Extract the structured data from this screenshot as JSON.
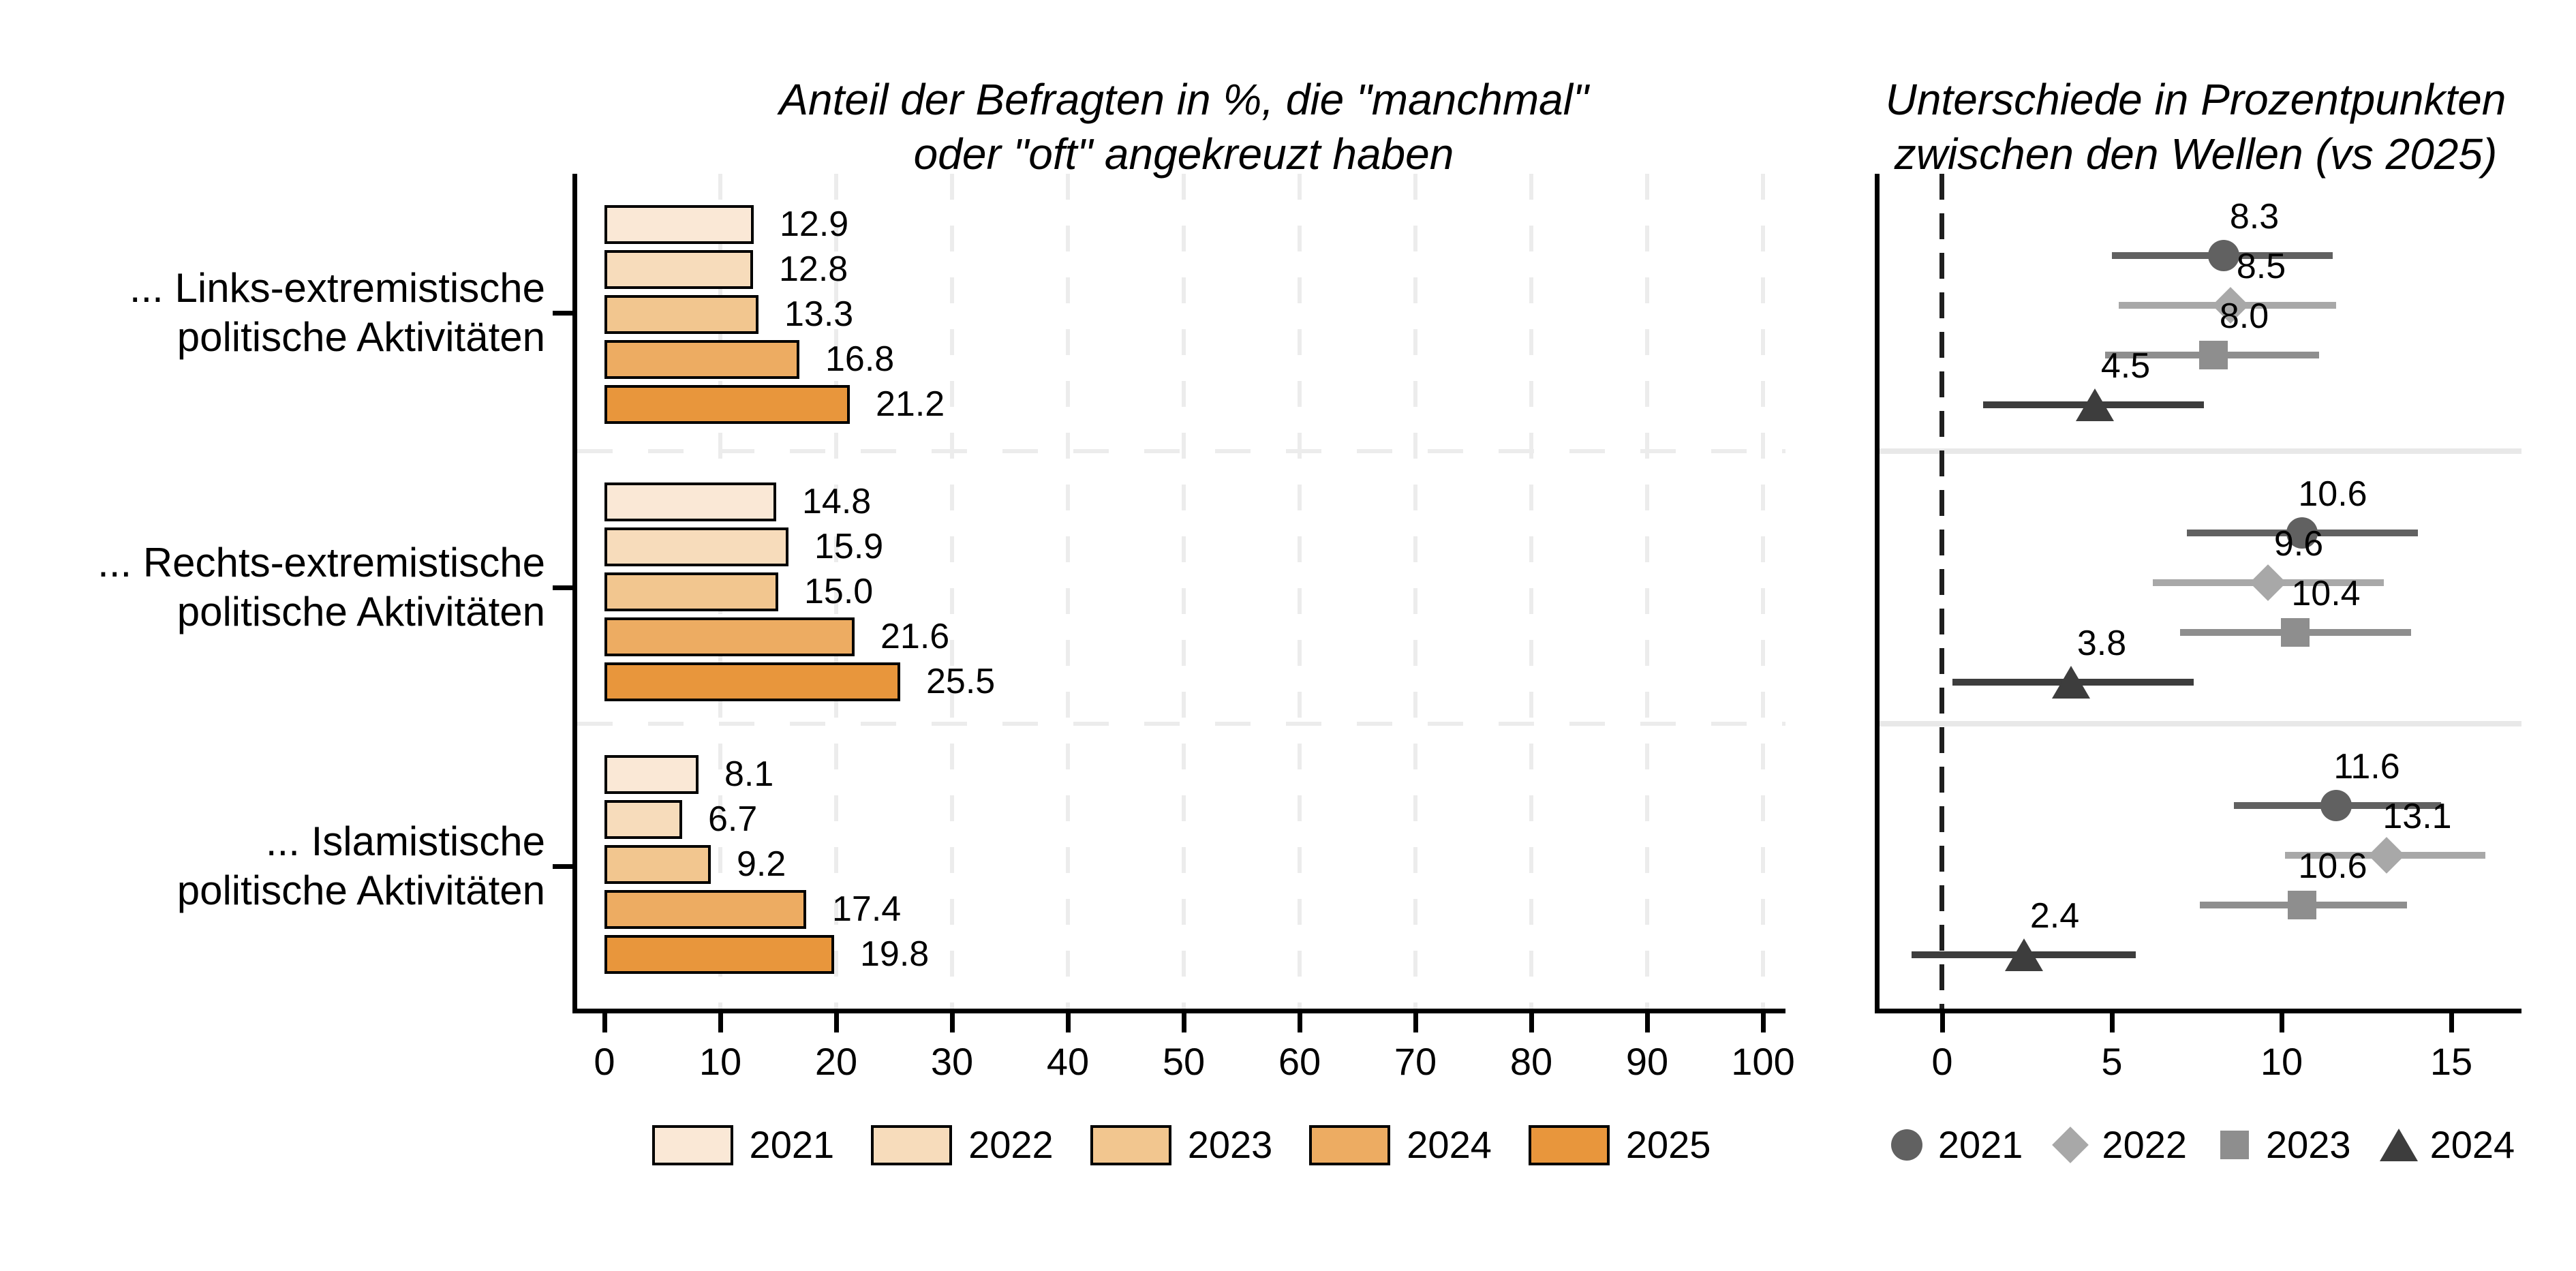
{
  "left_panel": {
    "title_line1": "Anteil der Befragten in %, die \"manchmal\"",
    "title_line2": "oder \"oft\" angekreuzt haben",
    "groups": [
      {
        "label_line1": "... Links-extremistische",
        "label_line2": "politische Aktivitäten"
      },
      {
        "label_line1": "... Rechts-extremistische",
        "label_line2": "politische Aktivitäten"
      },
      {
        "label_line1": "... Islamistische",
        "label_line2": "politische Aktivitäten"
      }
    ]
  },
  "right_panel": {
    "title_line1": "Unterschiede in Prozentpunkten",
    "title_line2": "zwischen den Wellen (vs 2025)"
  },
  "colors": {
    "axis": "#000000",
    "gridline": "#ECECEC",
    "separator": "#E8E8E8",
    "zero_line": "#1F1F1F",
    "text": "#000000"
  },
  "chart_data": [
    {
      "type": "bar",
      "orientation": "horizontal",
      "title": "Anteil der Befragten in %, die \"manchmal\" oder \"oft\" angekreuzt haben",
      "categories": [
        "... Links-extremistische politische Aktivitäten",
        "... Rechts-extremistische politische Aktivitäten",
        "... Islamistische politische Aktivitäten"
      ],
      "series": [
        {
          "name": "2021",
          "color": "#FAE8D6",
          "values": [
            12.9,
            14.8,
            8.1
          ]
        },
        {
          "name": "2022",
          "color": "#F7DCBB",
          "values": [
            12.8,
            15.9,
            6.7
          ]
        },
        {
          "name": "2023",
          "color": "#F2C68F",
          "values": [
            13.3,
            15.0,
            9.2
          ]
        },
        {
          "name": "2024",
          "color": "#EDAC62",
          "values": [
            16.8,
            21.6,
            17.4
          ]
        },
        {
          "name": "2025",
          "color": "#E8963C",
          "values": [
            21.2,
            25.5,
            19.8
          ]
        }
      ],
      "xlabel": "",
      "ylabel": "",
      "xlim": [
        0,
        100
      ],
      "x_ticks": [
        0,
        10,
        20,
        30,
        40,
        50,
        60,
        70,
        80,
        90,
        100
      ],
      "grid": "dashed-vertical-light",
      "legend_position": "bottom",
      "bar_labels": true
    },
    {
      "type": "scatter",
      "subtype": "dot-with-confidence-interval",
      "title": "Unterschiede in Prozentpunkten zwischen den Wellen (vs 2025)",
      "categories": [
        "... Links-extremistische politische Aktivitäten",
        "... Rechts-extremistische politische Aktivitäten",
        "... Islamistische politische Aktivitäten"
      ],
      "series": [
        {
          "name": "2021",
          "marker": "circle",
          "color": "#616161",
          "values": [
            8.3,
            10.6,
            11.6
          ],
          "ci_low": [
            5.0,
            7.2,
            8.6
          ],
          "ci_high": [
            11.5,
            14.0,
            14.7
          ]
        },
        {
          "name": "2022",
          "marker": "diamond",
          "color": "#A8A8A8",
          "values": [
            8.5,
            9.6,
            13.1
          ],
          "ci_low": [
            5.2,
            6.2,
            10.1
          ],
          "ci_high": [
            11.6,
            13.0,
            16.0
          ]
        },
        {
          "name": "2023",
          "marker": "square",
          "color": "#8E8E8E",
          "values": [
            8.0,
            10.4,
            10.6
          ],
          "ci_low": [
            4.8,
            7.0,
            7.6
          ],
          "ci_high": [
            11.1,
            13.8,
            13.7
          ]
        },
        {
          "name": "2024",
          "marker": "triangle",
          "color": "#3D3D3D",
          "values": [
            4.5,
            3.8,
            2.4
          ],
          "ci_low": [
            1.2,
            0.3,
            -0.9
          ],
          "ci_high": [
            7.7,
            7.4,
            5.7
          ]
        }
      ],
      "xlabel": "",
      "ylabel": "",
      "xlim": [
        -1.8,
        17
      ],
      "x_ticks": [
        0,
        5,
        10,
        15
      ],
      "zero_reference_line": true,
      "grid": "off",
      "legend_position": "bottom",
      "point_labels": true
    }
  ]
}
